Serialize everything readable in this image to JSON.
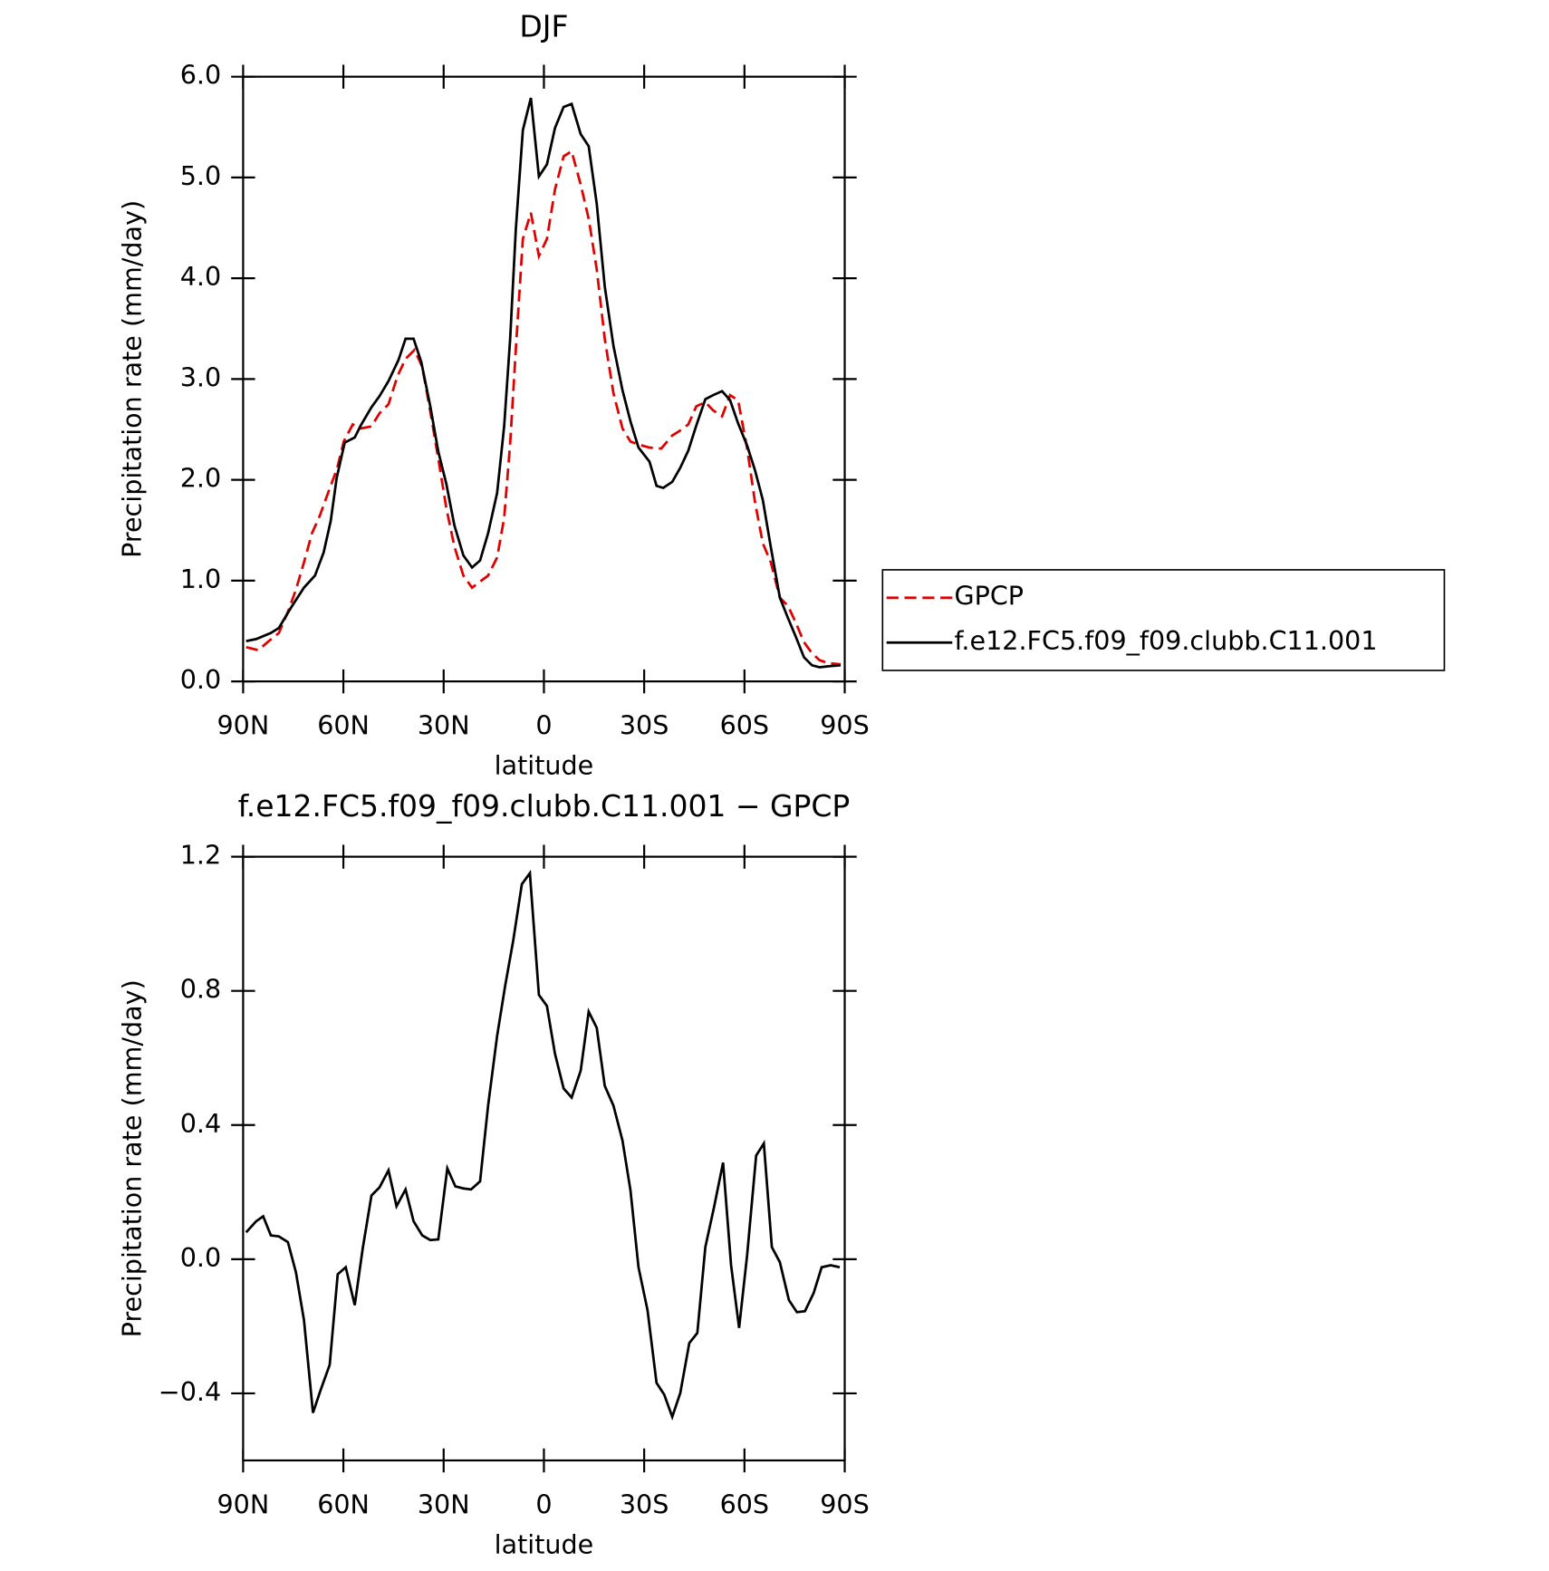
{
  "chart_data": [
    {
      "type": "line",
      "title": "DJF",
      "xlabel": "latitude",
      "ylabel": "Precipitation rate (mm/day)",
      "xlim": [
        90,
        -90
      ],
      "xticks": [
        {
          "value": 90,
          "label": "90N"
        },
        {
          "value": 60,
          "label": "60N"
        },
        {
          "value": 30,
          "label": "30N"
        },
        0,
        {
          "value": -30,
          "label": "30S"
        },
        {
          "value": -60,
          "label": "60S"
        },
        {
          "value": -90,
          "label": "90S"
        }
      ],
      "ylim": [
        0,
        6
      ],
      "yticks": [
        {
          "value": 0,
          "label": "0.0"
        },
        {
          "value": 1,
          "label": "1.0"
        },
        {
          "value": 2,
          "label": "2.0"
        },
        {
          "value": 3,
          "label": "3.0"
        },
        {
          "value": 4,
          "label": "4.0"
        },
        {
          "value": 5,
          "label": "5.0"
        },
        {
          "value": 6,
          "label": "6.0"
        }
      ],
      "legend": "right",
      "series": [
        {
          "name": "GPCP",
          "color": "#e00000",
          "linestyle": "dashed",
          "x": [
            89.1,
            85.5,
            82.3,
            79.3,
            76.6,
            74.2,
            71.8,
            69.4,
            67.1,
            64.7,
            61.9,
            59.9,
            57.2,
            54.8,
            51.6,
            49.2,
            46.5,
            43.8,
            41.4,
            38.7,
            36.4,
            34.0,
            31.6,
            29.2,
            26.8,
            24.1,
            21.5,
            19.1,
            16.7,
            14.0,
            11.9,
            10.1,
            8.4,
            6.3,
            3.9,
            1.5,
            -0.9,
            -3.3,
            -5.9,
            -8.3,
            -11.0,
            -13.4,
            -15.8,
            -18.2,
            -20.8,
            -23.5,
            -25.9,
            -28.3,
            -31.6,
            -35.1,
            -38.4,
            -40.8,
            -43.2,
            -45.6,
            -48.3,
            -50.6,
            -53.3,
            -55.7,
            -58.1,
            -60.8,
            -63.2,
            -65.5,
            -67.9,
            -70.6,
            -73.0,
            -75.4,
            -77.8,
            -80.2,
            -82.5,
            -85.2,
            -88.8
          ],
          "values": [
            0.34,
            0.31,
            0.4,
            0.48,
            0.69,
            0.91,
            1.18,
            1.47,
            1.64,
            1.86,
            2.11,
            2.38,
            2.55,
            2.51,
            2.53,
            2.66,
            2.75,
            3.03,
            3.2,
            3.29,
            3.12,
            2.68,
            2.21,
            1.72,
            1.34,
            1.05,
            0.93,
            0.99,
            1.05,
            1.23,
            1.62,
            2.36,
            3.3,
            4.39,
            4.65,
            4.22,
            4.39,
            4.88,
            5.21,
            5.26,
            4.93,
            4.59,
            4.09,
            3.4,
            2.86,
            2.51,
            2.38,
            2.35,
            2.32,
            2.31,
            2.44,
            2.49,
            2.55,
            2.73,
            2.77,
            2.69,
            2.63,
            2.84,
            2.79,
            2.31,
            1.77,
            1.37,
            1.18,
            0.83,
            0.75,
            0.58,
            0.39,
            0.28,
            0.21,
            0.18,
            0.17
          ]
        },
        {
          "name": "f.e12.FC5.f09_f09.clubb.C11.001",
          "color": "#000000",
          "linestyle": "solid",
          "x": [
            89.1,
            86.1,
            81.7,
            79.3,
            75.7,
            71.8,
            68.5,
            65.9,
            63.8,
            62.0,
            59.6,
            56.6,
            54.8,
            51.6,
            49.2,
            46.5,
            43.5,
            41.4,
            39.0,
            36.7,
            34.0,
            31.6,
            29.2,
            26.8,
            24.1,
            21.5,
            19.1,
            16.7,
            14.0,
            11.9,
            10.1,
            8.4,
            6.3,
            3.9,
            1.5,
            -0.9,
            -3.3,
            -5.9,
            -8.3,
            -11.0,
            -13.4,
            -15.8,
            -18.2,
            -20.8,
            -23.5,
            -25.9,
            -28.3,
            -31.6,
            -33.7,
            -35.7,
            -38.4,
            -40.8,
            -43.2,
            -45.6,
            -48.3,
            -50.6,
            -53.3,
            -55.7,
            -58.1,
            -60.8,
            -63.2,
            -65.5,
            -67.9,
            -70.6,
            -73.0,
            -75.4,
            -77.8,
            -80.2,
            -82.5,
            -85.2,
            -88.8
          ],
          "values": [
            0.4,
            0.42,
            0.48,
            0.53,
            0.73,
            0.93,
            1.05,
            1.28,
            1.59,
            2.02,
            2.37,
            2.42,
            2.54,
            2.72,
            2.83,
            2.98,
            3.19,
            3.4,
            3.4,
            3.17,
            2.73,
            2.28,
            1.96,
            1.55,
            1.25,
            1.13,
            1.2,
            1.47,
            1.87,
            2.53,
            3.4,
            4.49,
            5.47,
            5.79,
            5.01,
            5.13,
            5.49,
            5.7,
            5.73,
            5.43,
            5.31,
            4.74,
            3.92,
            3.33,
            2.89,
            2.58,
            2.32,
            2.18,
            1.94,
            1.92,
            1.98,
            2.12,
            2.29,
            2.54,
            2.8,
            2.84,
            2.88,
            2.79,
            2.56,
            2.34,
            2.09,
            1.8,
            1.33,
            0.83,
            0.63,
            0.44,
            0.24,
            0.16,
            0.14,
            0.15,
            0.16
          ]
        }
      ]
    },
    {
      "type": "line",
      "title": "f.e12.FC5.f09_f09.clubb.C11.001 − GPCP",
      "xlabel": "latitude",
      "ylabel": "Precipitation rate (mm/day)",
      "xlim": [
        90,
        -90
      ],
      "xticks": [
        {
          "value": 90,
          "label": "90N"
        },
        {
          "value": 60,
          "label": "60N"
        },
        {
          "value": 30,
          "label": "30N"
        },
        0,
        {
          "value": -30,
          "label": "30S"
        },
        {
          "value": -60,
          "label": "60S"
        },
        {
          "value": -90,
          "label": "90S"
        }
      ],
      "ylim": [
        -0.6,
        1.2
      ],
      "yticks": [
        {
          "value": -0.4,
          "label": "−0.4"
        },
        {
          "value": 0,
          "label": "0.0"
        },
        0.4,
        0.8,
        1.2
      ],
      "series": [
        {
          "color": "#000000",
          "linestyle": "solid",
          "x": [
            89.1,
            86.1,
            84.0,
            81.7,
            79.3,
            76.6,
            74.2,
            71.8,
            69.1,
            66.8,
            64.1,
            61.7,
            59.3,
            56.6,
            54.2,
            51.6,
            49.2,
            46.5,
            44.1,
            41.4,
            39.0,
            36.4,
            34.0,
            31.6,
            28.9,
            26.5,
            24.1,
            21.8,
            19.1,
            16.7,
            14.0,
            11.6,
            9.2,
            6.6,
            4.2,
            1.5,
            -0.9,
            -3.3,
            -5.9,
            -8.3,
            -11.0,
            -13.4,
            -15.8,
            -18.2,
            -20.8,
            -23.5,
            -25.9,
            -28.3,
            -31.0,
            -33.7,
            -36.0,
            -38.4,
            -40.8,
            -43.5,
            -45.9,
            -48.3,
            -50.9,
            -53.6,
            -56.0,
            -58.4,
            -60.8,
            -63.5,
            -65.8,
            -68.2,
            -70.6,
            -73.3,
            -75.7,
            -78.1,
            -80.7,
            -83.1,
            -85.8,
            -88.5
          ],
          "values": [
            0.08,
            0.113,
            0.128,
            0.071,
            0.068,
            0.051,
            -0.039,
            -0.181,
            -0.458,
            -0.39,
            -0.315,
            -0.045,
            -0.024,
            -0.137,
            0.033,
            0.19,
            0.214,
            0.265,
            0.158,
            0.208,
            0.113,
            0.071,
            0.057,
            0.059,
            0.271,
            0.217,
            0.211,
            0.208,
            0.232,
            0.458,
            0.666,
            0.815,
            0.949,
            1.118,
            1.151,
            0.788,
            0.755,
            0.613,
            0.509,
            0.482,
            0.562,
            0.738,
            0.69,
            0.517,
            0.458,
            0.354,
            0.205,
            -0.024,
            -0.152,
            -0.369,
            -0.404,
            -0.47,
            -0.399,
            -0.25,
            -0.22,
            0.036,
            0.155,
            0.288,
            -0.018,
            -0.205,
            0.012,
            0.309,
            0.345,
            0.036,
            -0.009,
            -0.122,
            -0.158,
            -0.155,
            -0.101,
            -0.024,
            -0.018,
            -0.024
          ]
        }
      ]
    }
  ]
}
